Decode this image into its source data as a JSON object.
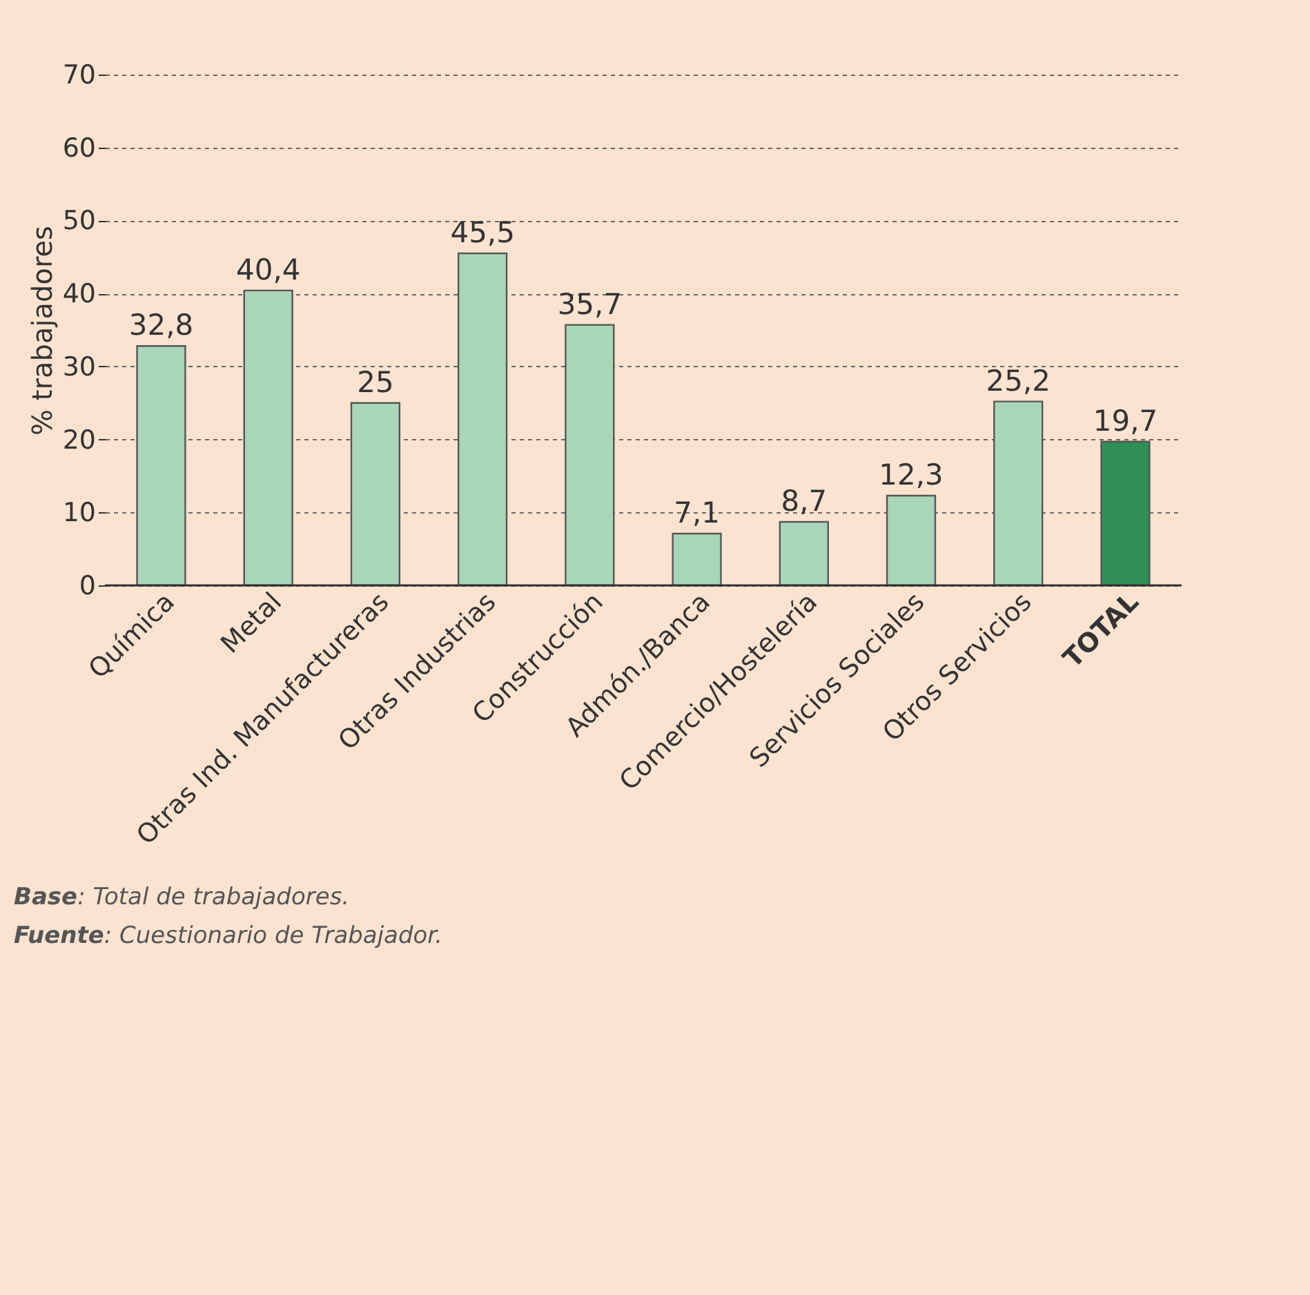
{
  "chart_data": {
    "type": "bar",
    "ylabel": "% trabajadores",
    "categories": [
      "Química",
      "Metal",
      "Otras Ind. Manufactureras",
      "Otras Industrias",
      "Construcción",
      "Admón./Banca",
      "Comercio/Hostelería",
      "Servicios Sociales",
      "Otros Servicios",
      "TOTAL"
    ],
    "values": [
      32.8,
      40.4,
      25,
      45.5,
      35.7,
      7.1,
      8.7,
      12.3,
      25.2,
      19.7
    ],
    "value_labels": [
      "32,8",
      "40,4",
      "25",
      "45,5",
      "35,7",
      "7,1",
      "8,7",
      "12,3",
      "25,2",
      "19,7"
    ],
    "colors": [
      "#a9d6b8",
      "#a9d6b8",
      "#a9d6b8",
      "#a9d6b8",
      "#a9d6b8",
      "#a9d6b8",
      "#a9d6b8",
      "#a9d6b8",
      "#a9d6b8",
      "#2f8f55"
    ],
    "ylim": [
      0,
      70
    ],
    "yticks": [
      0,
      10,
      20,
      30,
      40,
      50,
      60,
      70
    ],
    "grid": "y",
    "annotations": [
      "Base: Total de trabajadores.",
      "Fuente: Cuestionario de Trabajador."
    ]
  }
}
